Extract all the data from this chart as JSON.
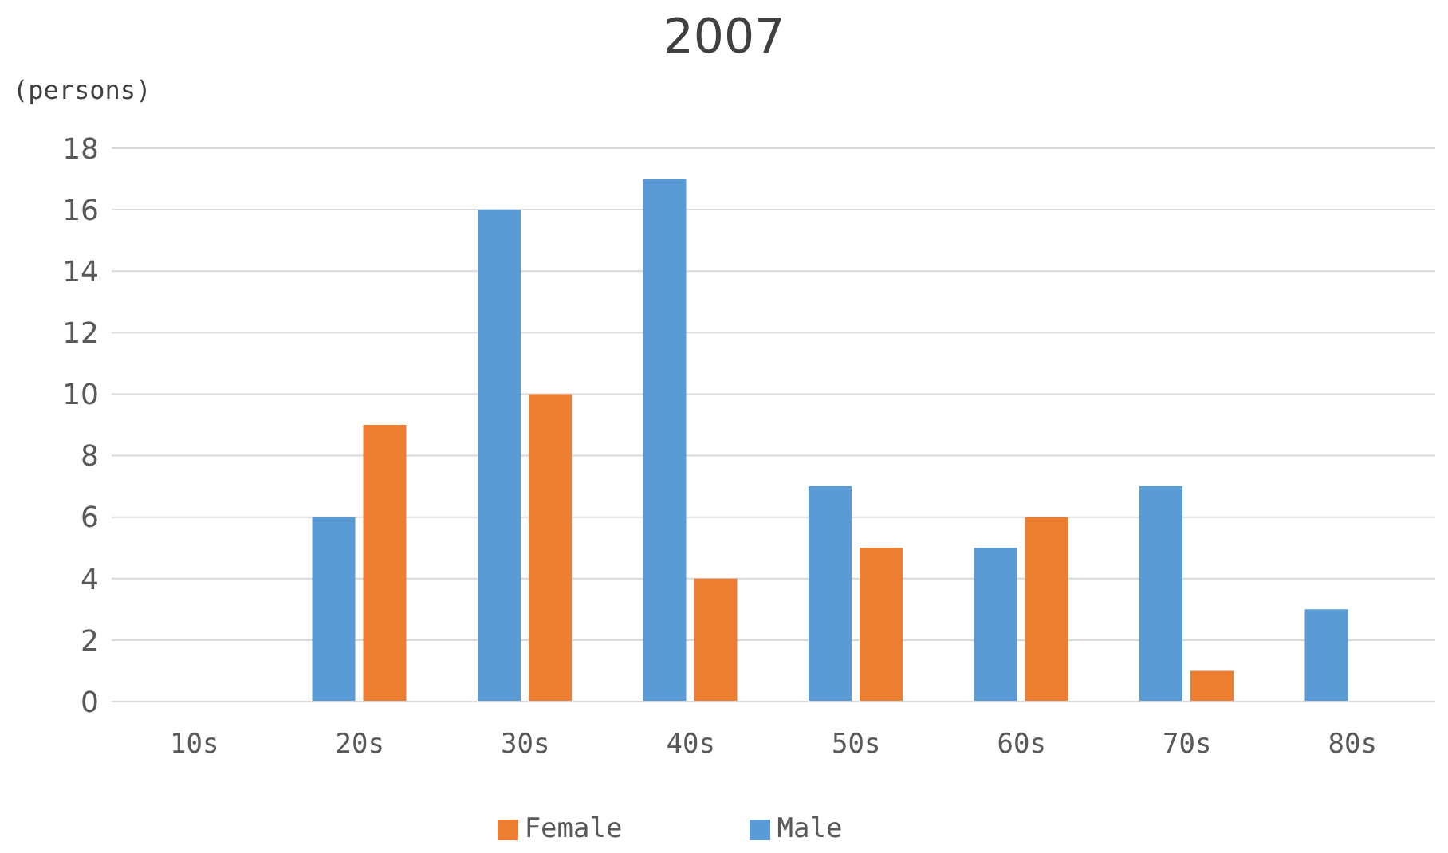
{
  "chart_data": {
    "type": "bar",
    "title": "2007",
    "ylabel": "(persons)",
    "categories": [
      "10s",
      "20s",
      "30s",
      "40s",
      "50s",
      "60s",
      "70s",
      "80s"
    ],
    "series": [
      {
        "name": "Male",
        "color": "#5b9bd5",
        "values": [
          0,
          6,
          16,
          17,
          7,
          5,
          7,
          3
        ]
      },
      {
        "name": "Female",
        "color": "#ed7d31",
        "values": [
          0,
          9,
          10,
          4,
          5,
          6,
          1,
          0
        ]
      }
    ],
    "ylim": [
      0,
      18
    ],
    "yticks": [
      0,
      2,
      4,
      6,
      8,
      10,
      12,
      14,
      16,
      18
    ],
    "grid": "y",
    "legend": "bottom"
  }
}
